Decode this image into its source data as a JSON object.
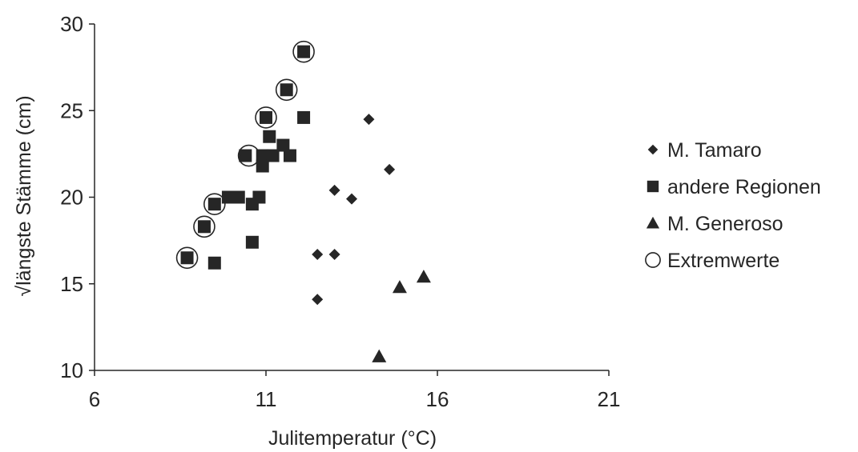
{
  "chart_data": {
    "type": "scatter",
    "title": "",
    "xlabel": "Julitemperatur (°C)",
    "ylabel": "√längste Stämme (cm)",
    "xlim": [
      6,
      21
    ],
    "ylim": [
      10,
      30
    ],
    "xticks": [
      6,
      11,
      16,
      21
    ],
    "yticks": [
      10,
      15,
      20,
      25,
      30
    ],
    "grid": false,
    "legend_position": "right",
    "series": [
      {
        "name": "M. Tamaro",
        "marker": "diamond",
        "color": "#262626",
        "points": [
          {
            "x": 14.0,
            "y": 24.5
          },
          {
            "x": 14.6,
            "y": 21.6
          },
          {
            "x": 13.0,
            "y": 20.4
          },
          {
            "x": 13.5,
            "y": 19.9
          },
          {
            "x": 12.5,
            "y": 16.7
          },
          {
            "x": 13.0,
            "y": 16.7
          },
          {
            "x": 12.5,
            "y": 14.1
          }
        ]
      },
      {
        "name": "andere Regionen",
        "marker": "square",
        "color": "#262626",
        "points": [
          {
            "x": 12.1,
            "y": 28.4
          },
          {
            "x": 11.6,
            "y": 26.2
          },
          {
            "x": 11.0,
            "y": 24.6
          },
          {
            "x": 12.1,
            "y": 24.6
          },
          {
            "x": 11.1,
            "y": 23.5
          },
          {
            "x": 11.5,
            "y": 23.0
          },
          {
            "x": 10.4,
            "y": 22.4
          },
          {
            "x": 10.9,
            "y": 22.4
          },
          {
            "x": 11.2,
            "y": 22.4
          },
          {
            "x": 11.7,
            "y": 22.4
          },
          {
            "x": 10.9,
            "y": 21.8
          },
          {
            "x": 9.9,
            "y": 20.0
          },
          {
            "x": 10.2,
            "y": 20.0
          },
          {
            "x": 10.8,
            "y": 20.0
          },
          {
            "x": 9.5,
            "y": 19.6
          },
          {
            "x": 10.6,
            "y": 19.6
          },
          {
            "x": 9.2,
            "y": 18.3
          },
          {
            "x": 10.6,
            "y": 17.4
          },
          {
            "x": 8.7,
            "y": 16.5
          },
          {
            "x": 9.5,
            "y": 16.2
          }
        ]
      },
      {
        "name": "M. Generoso",
        "marker": "triangle",
        "color": "#262626",
        "points": [
          {
            "x": 15.6,
            "y": 15.4
          },
          {
            "x": 14.9,
            "y": 14.8
          },
          {
            "x": 14.3,
            "y": 10.8
          }
        ]
      },
      {
        "name": "Extremwerte",
        "marker": "circle-open",
        "color": "#262626",
        "points": [
          {
            "x": 12.1,
            "y": 28.4
          },
          {
            "x": 11.6,
            "y": 26.2
          },
          {
            "x": 11.0,
            "y": 24.6
          },
          {
            "x": 10.5,
            "y": 22.4
          },
          {
            "x": 9.5,
            "y": 19.6
          },
          {
            "x": 9.2,
            "y": 18.3
          },
          {
            "x": 8.7,
            "y": 16.5
          }
        ]
      }
    ]
  }
}
